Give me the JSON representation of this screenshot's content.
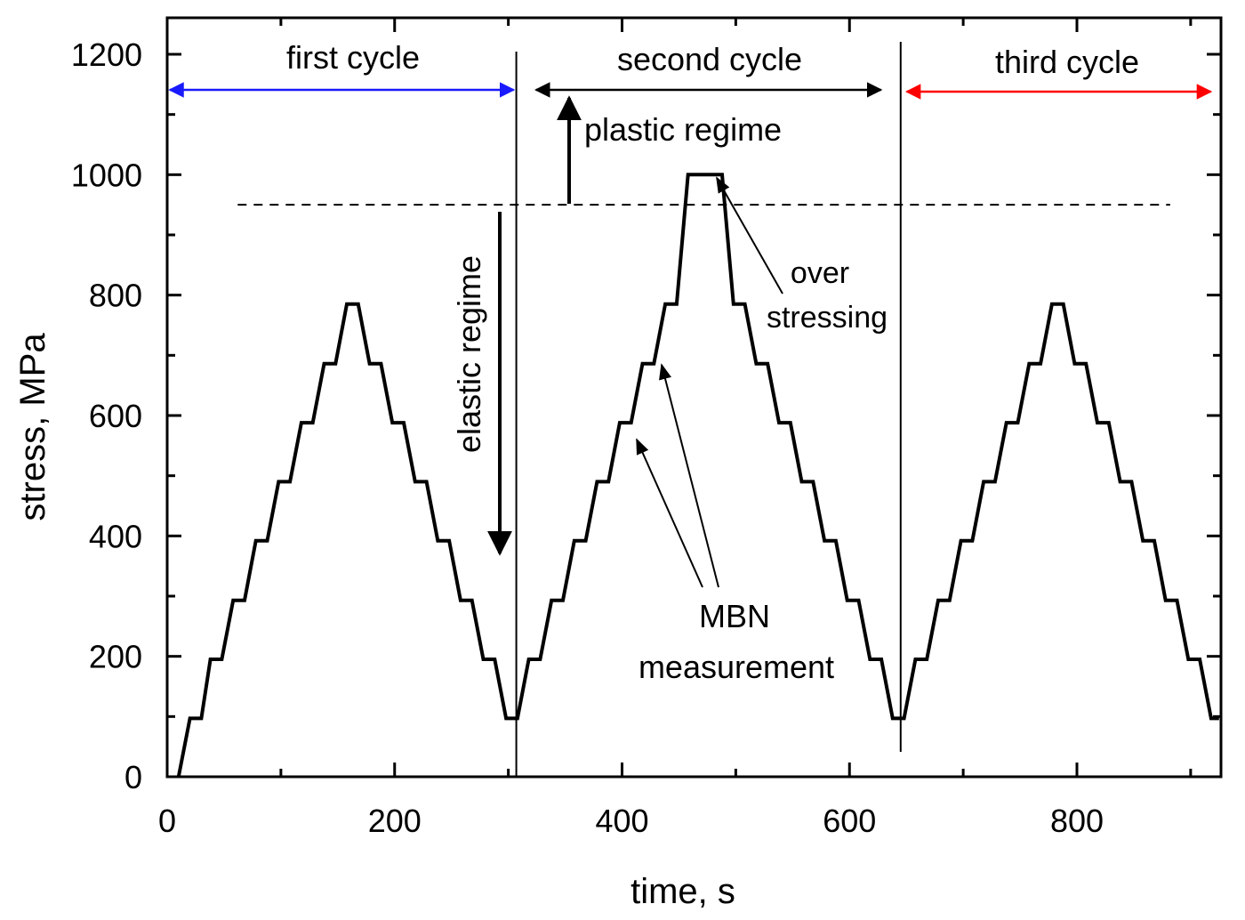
{
  "chart_data": {
    "type": "line",
    "xlabel": "time, s",
    "ylabel": "stress, MPa",
    "xlim": [
      0,
      925
    ],
    "ylim": [
      0,
      1250
    ],
    "xticks": [
      0,
      200,
      400,
      600,
      800
    ],
    "yticks": [
      0,
      200,
      400,
      600,
      800,
      1000,
      1200
    ],
    "grid": false,
    "series": [
      {
        "color": "#000000",
        "x": [
          10,
          20,
          30,
          38,
          48,
          58,
          68,
          78,
          88,
          98,
          108,
          118,
          128,
          138,
          148,
          158,
          168,
          178,
          188,
          198,
          208,
          218,
          228,
          238,
          248,
          258,
          268,
          278,
          288,
          298,
          308,
          318,
          328,
          338,
          348,
          358,
          368,
          378,
          388,
          398,
          408,
          418,
          428,
          438,
          448,
          458,
          468,
          478,
          488,
          498,
          508,
          518,
          528,
          538,
          548,
          558,
          568,
          578,
          588,
          598,
          608,
          618,
          628,
          638,
          648,
          658,
          668,
          678,
          688,
          698,
          708,
          718,
          728,
          738,
          748,
          758,
          768,
          778,
          788,
          798,
          808,
          818,
          828,
          838,
          848,
          858,
          868,
          878,
          888,
          898,
          908,
          918,
          925
        ],
        "y": [
          0,
          97,
          97,
          195,
          195,
          293,
          293,
          392,
          392,
          490,
          490,
          588,
          588,
          686,
          686,
          785,
          785,
          686,
          686,
          588,
          588,
          490,
          490,
          392,
          392,
          293,
          293,
          195,
          195,
          97,
          97,
          195,
          195,
          293,
          293,
          392,
          392,
          490,
          490,
          588,
          588,
          686,
          686,
          785,
          785,
          1000,
          1000,
          1000,
          1000,
          785,
          785,
          686,
          686,
          588,
          588,
          490,
          490,
          392,
          392,
          293,
          293,
          195,
          195,
          97,
          97,
          195,
          195,
          293,
          293,
          392,
          392,
          490,
          490,
          588,
          588,
          686,
          686,
          785,
          785,
          686,
          686,
          588,
          588,
          490,
          490,
          392,
          392,
          293,
          293,
          195,
          195,
          97,
          97
        ]
      }
    ],
    "threshold_line": {
      "y": 950,
      "x_from": 62,
      "x_to": 882,
      "style": "dashed"
    },
    "cycle_dividers": [
      307,
      645
    ],
    "cycles": [
      {
        "label": "first cycle",
        "color": "#1a1aff",
        "x_from": 0,
        "x_to": 307,
        "y": 1140
      },
      {
        "label": "second cycle",
        "color": "#000000",
        "x_from": 322,
        "x_to": 630,
        "y": 1140
      },
      {
        "label": "third cycle",
        "color": "#ff0000",
        "x_from": 648,
        "x_to": 920,
        "y": 1140
      }
    ],
    "annotations": {
      "plastic": "plastic regime",
      "elastic": "elastic regime",
      "over_line1": "over",
      "over_line2": "stressing",
      "mbn_line1": "MBN",
      "mbn_line2": "measurement"
    }
  }
}
